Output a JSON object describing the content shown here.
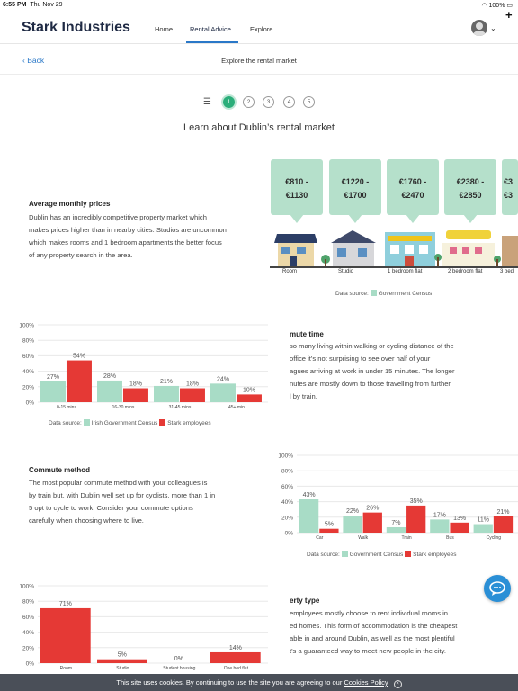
{
  "status": {
    "time": "6:55 PM",
    "date": "Thu Nov 29",
    "battery": "100%"
  },
  "header": {
    "brand": "Stark Industries",
    "nav": [
      "Home",
      "Rental Advice",
      "Explore"
    ]
  },
  "subnav": {
    "back": "Back",
    "title": "Explore the rental market"
  },
  "steps": [
    "1",
    "2",
    "3",
    "4",
    "5"
  ],
  "heading": "Learn about Dublin’s rental market",
  "prices": {
    "title": "Average monthly prices",
    "body": [
      "Dublin has an incredibly competitive property market which",
      "makes prices higher than in nearby cities. Studios are uncommon",
      "which makes rooms and 1 bedroom apartments the better focus",
      "of any property search in the area."
    ],
    "cards": [
      {
        "line1": "€810 -",
        "line2": "€1130",
        "label": "Room"
      },
      {
        "line1": "€1220 -",
        "line2": "€1700",
        "label": "Studio"
      },
      {
        "line1": "€1760 -",
        "line2": "€2470",
        "label": "1 bedroom flat"
      },
      {
        "line1": "€2380 -",
        "line2": "€2850",
        "label": "2 bedroom flat"
      },
      {
        "line1": "€3",
        "line2": "€3",
        "label": "3 bed"
      }
    ],
    "source_label": "Data source:",
    "source": "Government Census"
  },
  "commute_time": {
    "title": "mute time",
    "body": [
      "so many living within walking or cycling distance of the",
      " office it's not surprising to see over half of your",
      "agues arriving at work in under 15 minutes. The longer",
      "nutes are mostly down to those travelling from further",
      "l by train."
    ]
  },
  "commute_method": {
    "title": "Commute method",
    "body": [
      "The most popular commute method with your colleagues is",
      "by train but, with Dublin well set up for cyclists, more than 1 in",
      "5 opt to cycle to work. Consider your commute options",
      "carefully when choosing where to live."
    ]
  },
  "property_type": {
    "title": "erty type",
    "body": [
      " employees mostly choose to rent individual rooms in",
      "ed homes. This form of accommodation is the cheapest",
      "able in and around Dublin, as well as the most plentiful",
      "t's a guaranteed way to meet new people in the city."
    ]
  },
  "colors": {
    "green": "#a8dcc6",
    "red": "#e53935",
    "accent": "#2a78c8"
  },
  "chart_data": [
    {
      "type": "bar",
      "categories": [
        "0-15 mins",
        "16-30 mins",
        "31-45 mins",
        "45+ min"
      ],
      "series": [
        {
          "name": "Irish Government Census",
          "values": [
            27,
            28,
            21,
            24
          ]
        },
        {
          "name": "Stark employees",
          "values": [
            54,
            18,
            18,
            10
          ]
        }
      ],
      "yticks": [
        "0%",
        "20%",
        "40%",
        "60%",
        "80%",
        "100%"
      ],
      "ylim": [
        0,
        100
      ],
      "source_label": "Data source:"
    },
    {
      "type": "bar",
      "categories": [
        "Car",
        "Walk",
        "Train",
        "Bus",
        "Cycling"
      ],
      "series": [
        {
          "name": "Government Census",
          "values": [
            43,
            22,
            7,
            17,
            11
          ]
        },
        {
          "name": "Stark employees",
          "values": [
            5,
            26,
            35,
            13,
            21
          ]
        }
      ],
      "yticks": [
        "0%",
        "20%",
        "40%",
        "60%",
        "80%",
        "100%"
      ],
      "ylim": [
        0,
        100
      ],
      "source_label": "Data source:"
    },
    {
      "type": "bar",
      "categories": [
        "Room",
        "Studio",
        "Student housing",
        "One bed flat"
      ],
      "series": [
        {
          "values": [
            71,
            5,
            0,
            14
          ]
        }
      ],
      "yticks": [
        "0%",
        "20%",
        "40%",
        "60%",
        "80%",
        "100%"
      ],
      "ylim": [
        0,
        100
      ]
    }
  ],
  "cookie": {
    "text": "This site uses cookies. By continuing to use the site you are agreeing to our ",
    "link": "Cookies Policy",
    "close": "×"
  }
}
